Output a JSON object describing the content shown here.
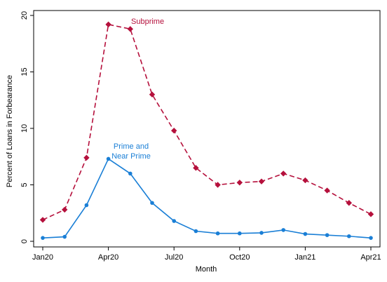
{
  "chart_data": {
    "type": "line",
    "xlabel": "Month",
    "ylabel": "Percent of Loans in Forbearance",
    "x": [
      "Jan20",
      "Feb20",
      "Mar20",
      "Apr20",
      "May20",
      "Jun20",
      "Jul20",
      "Aug20",
      "Sep20",
      "Oct20",
      "Nov20",
      "Dec20",
      "Jan21",
      "Feb21",
      "Mar21",
      "Apr21"
    ],
    "x_tick_labels": [
      "Jan20",
      "Apr20",
      "Jul20",
      "Oct20",
      "Jan21",
      "Apr21"
    ],
    "ylim": [
      0,
      20
    ],
    "y_ticks": [
      0,
      5,
      10,
      15,
      20
    ],
    "grid": false,
    "series": [
      {
        "name": "Subprime",
        "color": "#b5103c",
        "line_style": "dashed",
        "marker": "diamond",
        "values": [
          1.9,
          2.8,
          7.4,
          19.2,
          18.8,
          13.0,
          9.8,
          6.5,
          5.0,
          5.2,
          5.3,
          6.0,
          5.4,
          4.5,
          3.4,
          2.4
        ]
      },
      {
        "name": "Prime and Near Prime",
        "color": "#1a7fd6",
        "line_style": "solid",
        "marker": "circle",
        "values": [
          0.3,
          0.4,
          3.2,
          7.3,
          6.0,
          3.4,
          1.8,
          0.9,
          0.7,
          0.7,
          0.75,
          1.0,
          0.65,
          0.55,
          0.45,
          0.3
        ]
      }
    ],
    "annotations": [
      {
        "text": "Subprime",
        "series": 0,
        "color": "#b5103c"
      },
      {
        "text_lines": [
          "Prime and",
          "Near Prime"
        ],
        "series": 1,
        "color": "#1a7fd6"
      }
    ]
  }
}
